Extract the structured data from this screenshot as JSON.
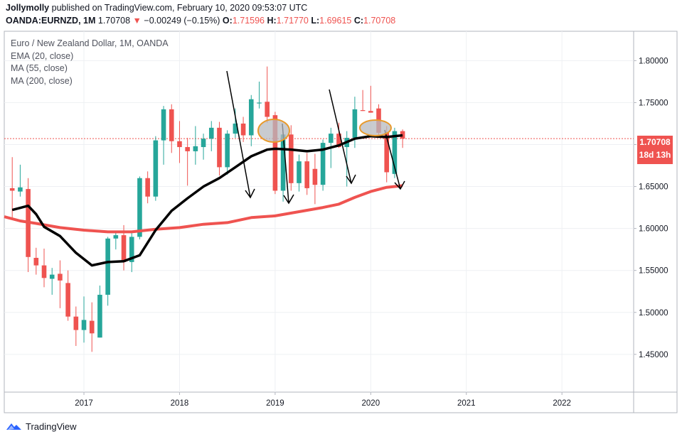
{
  "header": {
    "author": "Jollymolly",
    "published": "published on TradingView.com, February 10, 2020 09:53:07 UTC",
    "symbol": "OANDA:EURNZD, 1M",
    "last": "1.70708",
    "change_arrow": "▼",
    "change": "−0.00249 (−0.15%)",
    "o_label": "O:",
    "o_value": "1.71596",
    "h_label": "H:",
    "h_value": "1.71770",
    "l_label": "L:",
    "l_value": "1.69615",
    "c_label": "C:",
    "c_value": "1.70708"
  },
  "legend": {
    "title": "Euro / New Zealand Dollar, 1M, OANDA",
    "ema": "EMA (20, close)",
    "ma55": "MA (55, close)",
    "ma200": "MA (200, close)"
  },
  "price_label": {
    "value": "1.70708",
    "countdown": "18d 13h"
  },
  "footer": {
    "brand": "TradingView",
    "logo_icon": "tradingview-logo-icon"
  },
  "colors": {
    "up": "#26a69a",
    "down": "#ef5350",
    "ema": "#000000",
    "ma": "#ef5350",
    "highlight": "#e89a2c"
  },
  "chart_data": {
    "type": "candlestick",
    "x_ticks": [
      "2017",
      "2018",
      "2019",
      "2020",
      "2021",
      "2022"
    ],
    "y_ticks": [
      "1.45000",
      "1.50000",
      "1.55000",
      "1.60000",
      "1.65000",
      "1.70000",
      "1.75000",
      "1.80000"
    ],
    "ylim": [
      1.405,
      1.835
    ],
    "x_range": [
      "2016-03",
      "2022-10"
    ],
    "grid": true,
    "candles": [
      {
        "t": "2016-04",
        "o": 1.648,
        "h": 1.685,
        "l": 1.612,
        "c": 1.645
      },
      {
        "t": "2016-05",
        "o": 1.644,
        "h": 1.676,
        "l": 1.638,
        "c": 1.649
      },
      {
        "t": "2016-06",
        "o": 1.647,
        "h": 1.66,
        "l": 1.548,
        "c": 1.566
      },
      {
        "t": "2016-07",
        "o": 1.565,
        "h": 1.577,
        "l": 1.545,
        "c": 1.556
      },
      {
        "t": "2016-08",
        "o": 1.556,
        "h": 1.576,
        "l": 1.53,
        "c": 1.541
      },
      {
        "t": "2016-09",
        "o": 1.54,
        "h": 1.553,
        "l": 1.521,
        "c": 1.545
      },
      {
        "t": "2016-10",
        "o": 1.546,
        "h": 1.562,
        "l": 1.505,
        "c": 1.538
      },
      {
        "t": "2016-11",
        "o": 1.535,
        "h": 1.55,
        "l": 1.49,
        "c": 1.495
      },
      {
        "t": "2016-12",
        "o": 1.495,
        "h": 1.507,
        "l": 1.46,
        "c": 1.479
      },
      {
        "t": "2017-01",
        "o": 1.479,
        "h": 1.519,
        "l": 1.464,
        "c": 1.491
      },
      {
        "t": "2017-02",
        "o": 1.49,
        "h": 1.512,
        "l": 1.453,
        "c": 1.475
      },
      {
        "t": "2017-03",
        "o": 1.47,
        "h": 1.532,
        "l": 1.47,
        "c": 1.521
      },
      {
        "t": "2017-04",
        "o": 1.521,
        "h": 1.59,
        "l": 1.508,
        "c": 1.588
      },
      {
        "t": "2017-05",
        "o": 1.588,
        "h": 1.595,
        "l": 1.575,
        "c": 1.592
      },
      {
        "t": "2017-06",
        "o": 1.592,
        "h": 1.604,
        "l": 1.55,
        "c": 1.56
      },
      {
        "t": "2017-07",
        "o": 1.56,
        "h": 1.595,
        "l": 1.548,
        "c": 1.59
      },
      {
        "t": "2017-08",
        "o": 1.59,
        "h": 1.662,
        "l": 1.587,
        "c": 1.66
      },
      {
        "t": "2017-09",
        "o": 1.66,
        "h": 1.668,
        "l": 1.63,
        "c": 1.638
      },
      {
        "t": "2017-10",
        "o": 1.638,
        "h": 1.71,
        "l": 1.633,
        "c": 1.705
      },
      {
        "t": "2017-11",
        "o": 1.705,
        "h": 1.746,
        "l": 1.676,
        "c": 1.742
      },
      {
        "t": "2017-12",
        "o": 1.742,
        "h": 1.748,
        "l": 1.69,
        "c": 1.704
      },
      {
        "t": "2018-01",
        "o": 1.704,
        "h": 1.728,
        "l": 1.678,
        "c": 1.697
      },
      {
        "t": "2018-02",
        "o": 1.697,
        "h": 1.708,
        "l": 1.651,
        "c": 1.692
      },
      {
        "t": "2018-03",
        "o": 1.692,
        "h": 1.722,
        "l": 1.676,
        "c": 1.698
      },
      {
        "t": "2018-04",
        "o": 1.697,
        "h": 1.713,
        "l": 1.682,
        "c": 1.707
      },
      {
        "t": "2018-05",
        "o": 1.707,
        "h": 1.728,
        "l": 1.692,
        "c": 1.72
      },
      {
        "t": "2018-06",
        "o": 1.72,
        "h": 1.727,
        "l": 1.663,
        "c": 1.673
      },
      {
        "t": "2018-07",
        "o": 1.673,
        "h": 1.717,
        "l": 1.664,
        "c": 1.713
      },
      {
        "t": "2018-08",
        "o": 1.713,
        "h": 1.743,
        "l": 1.708,
        "c": 1.725
      },
      {
        "t": "2018-09",
        "o": 1.725,
        "h": 1.733,
        "l": 1.703,
        "c": 1.711
      },
      {
        "t": "2018-10",
        "o": 1.711,
        "h": 1.759,
        "l": 1.698,
        "c": 1.754
      },
      {
        "t": "2018-11",
        "o": 1.749,
        "h": 1.775,
        "l": 1.743,
        "c": 1.75
      },
      {
        "t": "2018-12",
        "o": 1.751,
        "h": 1.793,
        "l": 1.726,
        "c": 1.733
      },
      {
        "t": "2019-01",
        "o": 1.735,
        "h": 1.739,
        "l": 1.641,
        "c": 1.645
      },
      {
        "t": "2019-02",
        "o": 1.645,
        "h": 1.715,
        "l": 1.632,
        "c": 1.712
      },
      {
        "t": "2019-03",
        "o": 1.712,
        "h": 1.723,
        "l": 1.645,
        "c": 1.654
      },
      {
        "t": "2019-04",
        "o": 1.654,
        "h": 1.688,
        "l": 1.644,
        "c": 1.68
      },
      {
        "t": "2019-05",
        "o": 1.68,
        "h": 1.69,
        "l": 1.64,
        "c": 1.648
      },
      {
        "t": "2019-06",
        "o": 1.671,
        "h": 1.689,
        "l": 1.629,
        "c": 1.652
      },
      {
        "t": "2019-07",
        "o": 1.652,
        "h": 1.706,
        "l": 1.645,
        "c": 1.702
      },
      {
        "t": "2019-08",
        "o": 1.702,
        "h": 1.72,
        "l": 1.672,
        "c": 1.713
      },
      {
        "t": "2019-09",
        "o": 1.713,
        "h": 1.726,
        "l": 1.696,
        "c": 1.697
      },
      {
        "t": "2019-10",
        "o": 1.697,
        "h": 1.716,
        "l": 1.65,
        "c": 1.708
      },
      {
        "t": "2019-11",
        "o": 1.708,
        "h": 1.757,
        "l": 1.696,
        "c": 1.742
      },
      {
        "t": "2019-12",
        "o": 1.741,
        "h": 1.765,
        "l": 1.74,
        "c": 1.74
      },
      {
        "t": "2020-01",
        "o": 1.74,
        "h": 1.77,
        "l": 1.738,
        "c": 1.738
      },
      {
        "t": "2020-02",
        "o": 1.743,
        "h": 1.748,
        "l": 1.708,
        "c": 1.714
      },
      {
        "t": "2020-03",
        "o": 1.714,
        "h": 1.722,
        "l": 1.655,
        "c": 1.667
      },
      {
        "t": "2020-04",
        "o": 1.665,
        "h": 1.72,
        "l": 1.66,
        "c": 1.716
      },
      {
        "t": "2020-05",
        "o": 1.716,
        "h": 1.718,
        "l": 1.696,
        "c": 1.707
      }
    ],
    "ema20": [
      [
        "2016-04",
        1.622
      ],
      [
        "2016-06",
        1.627
      ],
      [
        "2016-07",
        1.617
      ],
      [
        "2016-08",
        1.602
      ],
      [
        "2016-10",
        1.591
      ],
      [
        "2016-12",
        1.571
      ],
      [
        "2017-02",
        1.556
      ],
      [
        "2017-04",
        1.56
      ],
      [
        "2017-06",
        1.561
      ],
      [
        "2017-08",
        1.568
      ],
      [
        "2017-10",
        1.598
      ],
      [
        "2017-12",
        1.621
      ],
      [
        "2018-02",
        1.636
      ],
      [
        "2018-04",
        1.65
      ],
      [
        "2018-06",
        1.66
      ],
      [
        "2018-08",
        1.673
      ],
      [
        "2018-10",
        1.686
      ],
      [
        "2018-12",
        1.694
      ],
      [
        "2019-01",
        1.695
      ],
      [
        "2019-03",
        1.694
      ],
      [
        "2019-05",
        1.692
      ],
      [
        "2019-07",
        1.694
      ],
      [
        "2019-09",
        1.699
      ],
      [
        "2019-11",
        1.707
      ],
      [
        "2020-01",
        1.71
      ],
      [
        "2020-03",
        1.709
      ],
      [
        "2020-05",
        1.711
      ]
    ],
    "ma55": [
      [
        "2016-03",
        1.614
      ],
      [
        "2016-05",
        1.609
      ],
      [
        "2016-07",
        1.606
      ],
      [
        "2016-10",
        1.601
      ],
      [
        "2017-01",
        1.598
      ],
      [
        "2017-04",
        1.596
      ],
      [
        "2017-07",
        1.596
      ],
      [
        "2017-10",
        1.599
      ],
      [
        "2018-01",
        1.601
      ],
      [
        "2018-04",
        1.605
      ],
      [
        "2018-07",
        1.607
      ],
      [
        "2018-10",
        1.613
      ],
      [
        "2019-01",
        1.615
      ],
      [
        "2019-04",
        1.62
      ],
      [
        "2019-07",
        1.625
      ],
      [
        "2019-09",
        1.629
      ],
      [
        "2019-11",
        1.637
      ],
      [
        "2020-01",
        1.644
      ],
      [
        "2020-03",
        1.649
      ],
      [
        "2020-05",
        1.651
      ]
    ]
  }
}
